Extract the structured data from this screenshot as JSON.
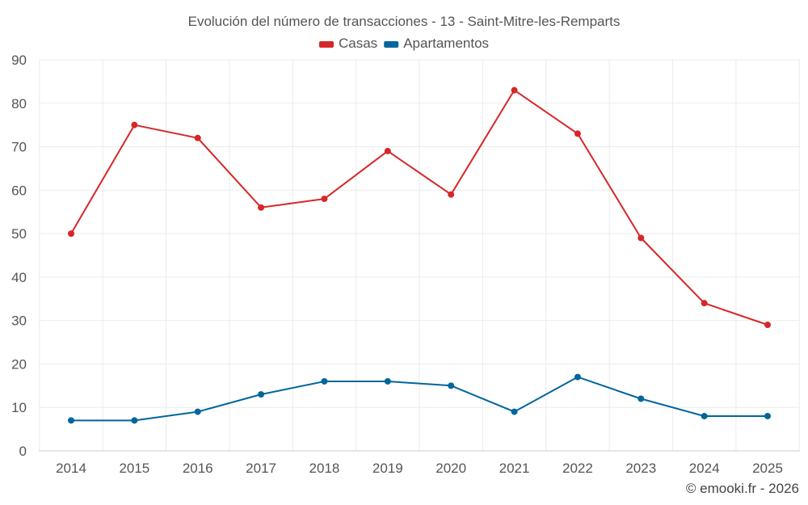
{
  "chart_data": {
    "type": "line",
    "title": "Evolución del número de transacciones - 13 - Saint-Mitre-les-Remparts",
    "xlabel": "",
    "ylabel": "",
    "categories": [
      "2014",
      "2015",
      "2016",
      "2017",
      "2018",
      "2019",
      "2020",
      "2021",
      "2022",
      "2023",
      "2024",
      "2025"
    ],
    "ylim": [
      0,
      90
    ],
    "yticks": [
      0,
      10,
      20,
      30,
      40,
      50,
      60,
      70,
      80,
      90
    ],
    "grid": true,
    "legend_position": "top-center",
    "series": [
      {
        "name": "Casas",
        "color": "#d62728",
        "values": [
          50,
          75,
          72,
          56,
          58,
          69,
          59,
          83,
          73,
          49,
          34,
          29
        ]
      },
      {
        "name": "Apartamentos",
        "color": "#00669c",
        "values": [
          7,
          7,
          9,
          13,
          16,
          16,
          15,
          9,
          17,
          12,
          8,
          8
        ]
      }
    ]
  },
  "credit": "© emooki.fr - 2026"
}
